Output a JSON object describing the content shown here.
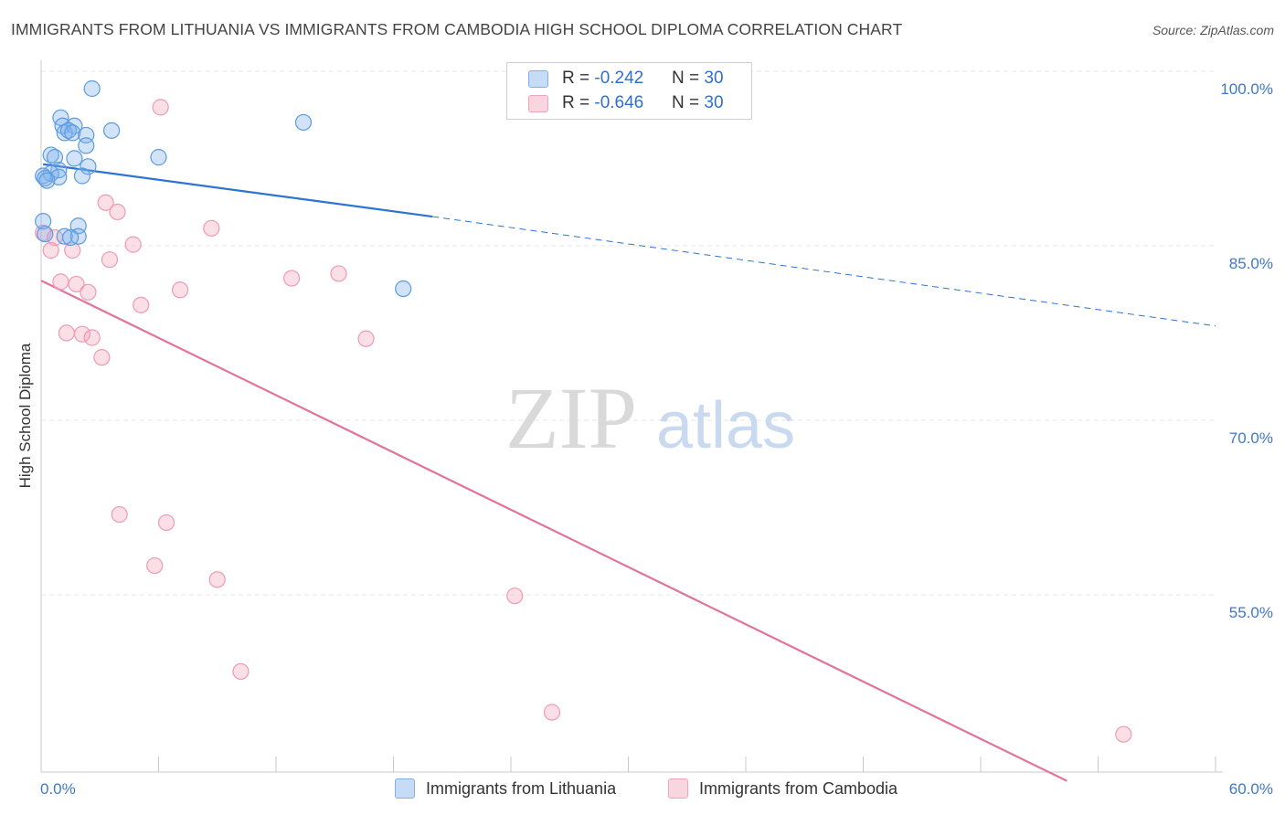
{
  "title": "IMMIGRANTS FROM LITHUANIA VS IMMIGRANTS FROM CAMBODIA HIGH SCHOOL DIPLOMA CORRELATION CHART",
  "source": "Source: ZipAtlas.com",
  "watermark": {
    "zip": "ZIP",
    "atlas": "atlas"
  },
  "legend_top": {
    "rows": [
      {
        "r_label": "R = ",
        "r_value": "-0.242",
        "n_label": "N = ",
        "n_value": "30",
        "color": "#7fb0ea"
      },
      {
        "r_label": "R = ",
        "r_value": "-0.646",
        "n_label": "N = ",
        "n_value": "30",
        "color": "#f2a3b9"
      }
    ]
  },
  "chart_data": {
    "type": "scatter",
    "title": "IMMIGRANTS FROM LITHUANIA VS IMMIGRANTS FROM CAMBODIA HIGH SCHOOL DIPLOMA CORRELATION CHART",
    "xlabel": "",
    "ylabel": "High School Diploma",
    "xlim": [
      0,
      60
    ],
    "ylim": [
      40,
      101.5
    ],
    "x_tick_labels": [
      "0.0%",
      "60.0%"
    ],
    "y_ticks": [
      55,
      70,
      85,
      100
    ],
    "y_tick_labels": [
      "55.0%",
      "70.0%",
      "85.0%",
      "100.0%"
    ],
    "grid": true,
    "legend_position": "bottom",
    "series": [
      {
        "name": "Immigrants from Lithuania",
        "color": "#5b9be0",
        "fill": "rgba(127,176,234,0.35)",
        "line_color": "#2e72d2",
        "trend": {
          "x0": 0.1,
          "y0": 93.5,
          "x1": 20,
          "y1": 89.0,
          "dash_to_x": 60,
          "dash_to_y": 79.6
        },
        "points": [
          [
            2.6,
            100.0
          ],
          [
            1.0,
            97.5
          ],
          [
            1.1,
            96.8
          ],
          [
            1.2,
            96.2
          ],
          [
            1.7,
            96.8
          ],
          [
            1.4,
            96.4
          ],
          [
            1.6,
            96.2
          ],
          [
            2.3,
            96.0
          ],
          [
            3.6,
            96.4
          ],
          [
            2.3,
            95.1
          ],
          [
            0.5,
            94.3
          ],
          [
            0.7,
            94.1
          ],
          [
            1.7,
            94.0
          ],
          [
            6.0,
            94.1
          ],
          [
            2.4,
            93.3
          ],
          [
            0.9,
            93.0
          ],
          [
            0.5,
            92.7
          ],
          [
            0.1,
            92.5
          ],
          [
            0.9,
            92.4
          ],
          [
            2.1,
            92.5
          ],
          [
            0.2,
            92.3
          ],
          [
            0.3,
            92.1
          ],
          [
            13.4,
            97.1
          ],
          [
            0.1,
            88.6
          ],
          [
            1.9,
            88.2
          ],
          [
            0.2,
            87.5
          ],
          [
            1.2,
            87.3
          ],
          [
            1.9,
            87.3
          ],
          [
            1.5,
            87.2
          ],
          [
            18.5,
            82.8
          ]
        ]
      },
      {
        "name": "Immigrants from Cambodia",
        "color": "#ee9ab2",
        "fill": "rgba(242,163,185,0.35)",
        "line_color": "#e2739a",
        "trend": {
          "x0": 0,
          "y0": 83.5,
          "x1": 52.4,
          "y1": 40.5
        },
        "points": [
          [
            6.1,
            98.4
          ],
          [
            3.3,
            90.2
          ],
          [
            3.9,
            89.4
          ],
          [
            8.7,
            88.0
          ],
          [
            0.1,
            87.6
          ],
          [
            0.7,
            87.2
          ],
          [
            4.7,
            86.6
          ],
          [
            0.5,
            86.1
          ],
          [
            1.6,
            86.1
          ],
          [
            3.5,
            85.3
          ],
          [
            15.2,
            84.1
          ],
          [
            12.8,
            83.7
          ],
          [
            1.0,
            83.4
          ],
          [
            1.8,
            83.2
          ],
          [
            7.1,
            82.7
          ],
          [
            2.4,
            82.5
          ],
          [
            5.1,
            81.4
          ],
          [
            1.3,
            79.0
          ],
          [
            2.1,
            78.9
          ],
          [
            2.6,
            78.6
          ],
          [
            16.6,
            78.5
          ],
          [
            3.1,
            76.9
          ],
          [
            4.0,
            63.4
          ],
          [
            6.4,
            62.7
          ],
          [
            5.8,
            59.0
          ],
          [
            9.0,
            57.8
          ],
          [
            24.2,
            56.4
          ],
          [
            10.2,
            49.9
          ],
          [
            26.1,
            46.4
          ],
          [
            55.3,
            44.5
          ]
        ]
      }
    ]
  }
}
